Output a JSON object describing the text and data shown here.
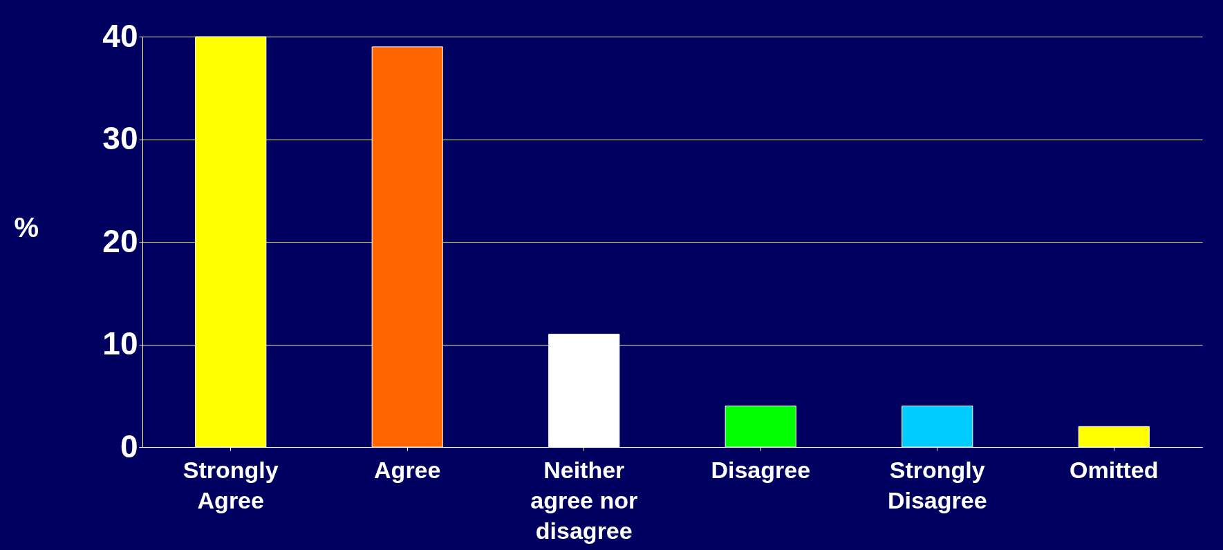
{
  "chart_data": {
    "type": "bar",
    "ylabel": "%",
    "categories": [
      "Strongly\nAgree",
      "Agree",
      "Neither\nagree nor\ndisagree",
      "Disagree",
      "Strongly\nDisagree",
      "Omitted"
    ],
    "values": [
      40,
      39,
      11,
      4,
      4,
      2
    ],
    "colors": [
      "#ffff00",
      "#ff6600",
      "#ffffff",
      "#00ff00",
      "#00ccff",
      "#ffff00"
    ],
    "ylim": [
      0,
      40
    ],
    "yticks": [
      0,
      10,
      20,
      30,
      40
    ],
    "grid": "y"
  }
}
